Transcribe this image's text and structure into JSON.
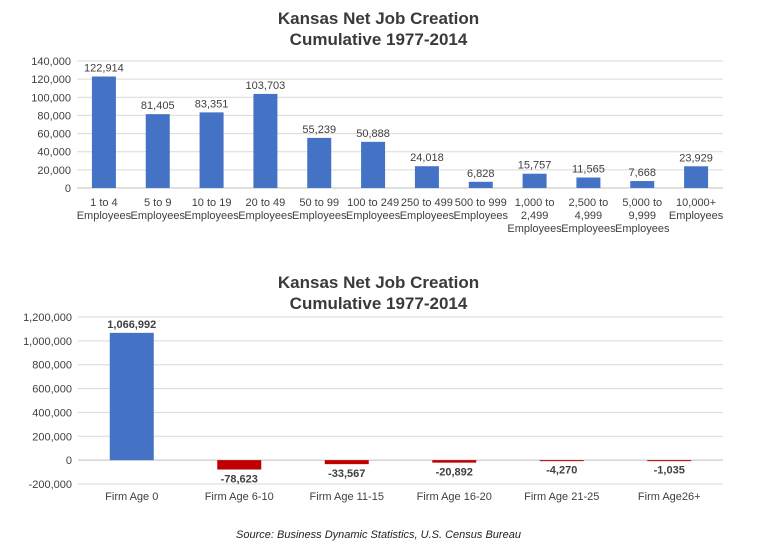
{
  "chart_data": [
    {
      "type": "bar",
      "title": "Kansas Net Job Creation",
      "subtitle": "Cumulative 1977-2014",
      "categories": [
        [
          "1 to 4",
          "Employees"
        ],
        [
          "5 to 9",
          "Employees"
        ],
        [
          "10 to 19",
          "Employees"
        ],
        [
          "20 to 49",
          "Employees"
        ],
        [
          "50 to 99",
          "Employees"
        ],
        [
          "100 to 249",
          "Employees"
        ],
        [
          "250 to 499",
          "Employees"
        ],
        [
          "500 to 999",
          "Employees"
        ],
        [
          "1,000 to",
          "2,499",
          "Employees"
        ],
        [
          "2,500 to",
          "4,999",
          "Employees"
        ],
        [
          "5,000 to",
          "9,999",
          "Employees"
        ],
        [
          "10,000+",
          "Employees"
        ]
      ],
      "values": [
        122914,
        81405,
        83351,
        103703,
        55239,
        50888,
        24018,
        6828,
        15757,
        11565,
        7668,
        23929
      ],
      "value_labels": [
        "122,914",
        "81,405",
        "83,351",
        "103,703",
        "55,239",
        "50,888",
        "24,018",
        "6,828",
        "15,757",
        "11,565",
        "7,668",
        "23,929"
      ],
      "ylim": [
        0,
        140000
      ],
      "yticks": [
        0,
        20000,
        40000,
        60000,
        80000,
        100000,
        120000,
        140000
      ],
      "ytick_labels": [
        "0",
        "20,000",
        "40,000",
        "60,000",
        "80,000",
        "100,000",
        "120,000",
        "140,000"
      ],
      "grid": true,
      "bar_color": "#4472C4"
    },
    {
      "type": "bar",
      "title": "Kansas Net Job Creation",
      "subtitle": "Cumulative 1977-2014",
      "categories": [
        "Firm Age 0",
        "Firm Age 6-10",
        "Firm Age 11-15",
        "Firm Age 16-20",
        "Firm Age 21-25",
        "Firm Age26+"
      ],
      "values": [
        1066992,
        -78623,
        -33567,
        -20892,
        -4270,
        -1035
      ],
      "value_labels": [
        "1,066,992",
        "-78,623",
        "-33,567",
        "-20,892",
        "-4,270",
        "-1,035"
      ],
      "ylim": [
        -200000,
        1200000
      ],
      "yticks": [
        -200000,
        0,
        200000,
        400000,
        600000,
        800000,
        1000000,
        1200000
      ],
      "ytick_labels": [
        "-200,000",
        "0",
        "200,000",
        "400,000",
        "600,000",
        "800,000",
        "1,000,000",
        "1,200,000"
      ],
      "grid": true,
      "positive_color": "#4472C4",
      "negative_color": "#C00000"
    }
  ],
  "source": "Source: Business Dynamic Statistics, U.S. Census Bureau"
}
